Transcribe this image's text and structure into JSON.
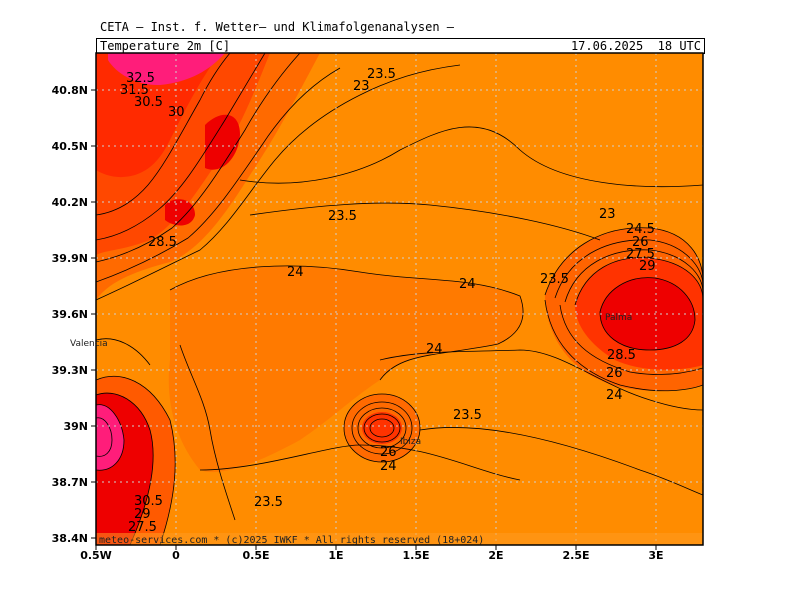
{
  "header": {
    "title": "CETA — Inst. f. Wetter— und Klimafolgenanalysen —",
    "field": "Temperature 2m [C]",
    "valid_time": "17.06.2025  18 UTC"
  },
  "footer": {
    "copyright": "meteo-services.com * (c)2025 IWKF * All rights reserved (18+024)"
  },
  "axes": {
    "lat_labels": [
      "40.8N",
      "40.5N",
      "40.2N",
      "39.9N",
      "39.6N",
      "39.3N",
      "39N",
      "38.7N",
      "38.4N"
    ],
    "lon_labels": [
      "0.5W",
      "0",
      "0.5E",
      "1E",
      "1.5E",
      "2E",
      "2.5E",
      "3E"
    ]
  },
  "places": {
    "valencia": "Valencia",
    "palma": "Palma",
    "ibiza": "Ibiza"
  },
  "contour_labels": {
    "l1": "32.5",
    "l2": "31.5",
    "l3": "30.5",
    "l4": "30",
    "l5": "23.5",
    "l6": "23",
    "l7": "23.5",
    "l8": "28.5",
    "l9": "24",
    "l10": "24",
    "l11": "24",
    "l12": "23",
    "l13": "24.5",
    "l14": "26",
    "l15": "27.5",
    "l16": "29",
    "l17": "23.5",
    "l18": "28.5",
    "l19": "26",
    "l20": "24",
    "l21": "23.5",
    "l22": "26",
    "l23": "24",
    "l24": "23.5",
    "l25": "30.5",
    "l26": "29",
    "l27": "27.5"
  },
  "colors": {
    "t_23": "#ff8c00",
    "t_24": "#ff7d00",
    "t_26": "#ff6400",
    "t_28": "#ff3300",
    "t_30": "#ee0000",
    "t_32": "#ff1d7a"
  }
}
